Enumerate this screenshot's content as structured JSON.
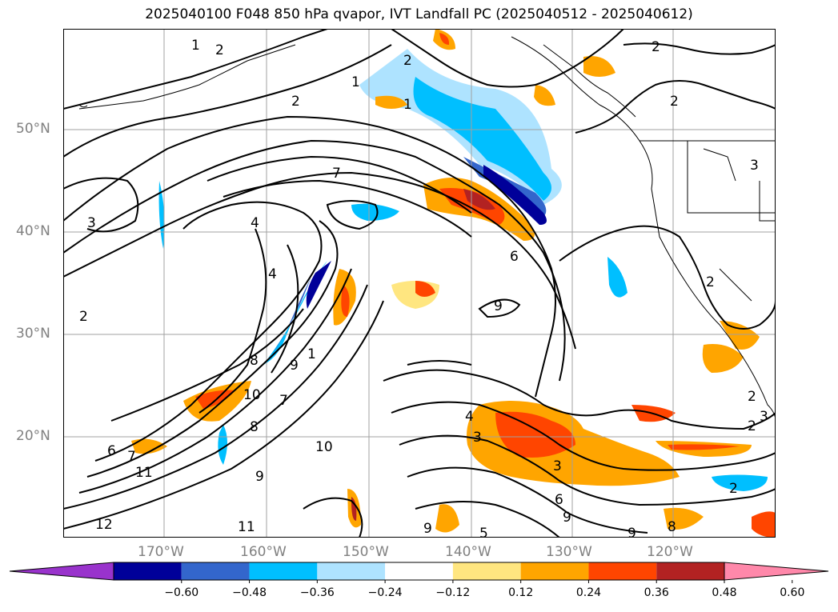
{
  "title": "2025040100 F048 850 hPa qvapor, IVT Landfall PC (2025040512 - 2025040612)",
  "lat_labels": [
    "50°N",
    "40°N",
    "30°N",
    "20°N"
  ],
  "lon_labels": [
    "170°W",
    "160°W",
    "150°W",
    "140°W",
    "130°W",
    "120°W"
  ],
  "colorbar": {
    "colors": [
      "#9933cc",
      "#000099",
      "#3366cc",
      "#00bfff",
      "#aee3ff",
      "#ffffff",
      "#ffe680",
      "#ffa500",
      "#ff4500",
      "#b22222",
      "#ff88aa"
    ],
    "tick_labels": [
      "−0.60",
      "−0.48",
      "−0.36",
      "−0.24",
      "−0.12",
      "0.12",
      "0.24",
      "0.36",
      "0.48",
      "0.60"
    ]
  },
  "contour_labels": [
    "1",
    "2",
    "2",
    "1",
    "2",
    "1",
    "2",
    "2",
    "3",
    "7",
    "4",
    "3",
    "4",
    "2",
    "6",
    "8",
    "9",
    "9",
    "1",
    "10",
    "8",
    "7",
    "6",
    "10",
    "7",
    "11",
    "12",
    "11",
    "9",
    "9",
    "4",
    "3",
    "3",
    "6",
    "9",
    "9",
    "8",
    "2",
    "2",
    "3",
    "2",
    "2",
    "5"
  ],
  "colors": {
    "grid": "#a0a0a0",
    "contour": "#000000",
    "coast": "#000000",
    "axis_label": "#808080"
  }
}
